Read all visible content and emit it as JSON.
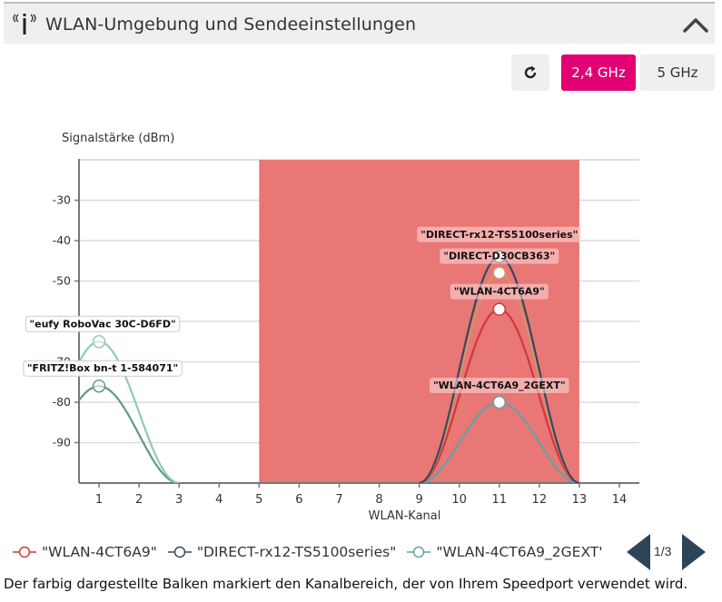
{
  "header": {
    "title": "WLAN-Umgebung und Sendeeinstellungen",
    "icon": "wifi-antenna-icon",
    "collapse_icon": "chevron-up-icon"
  },
  "toolbar": {
    "refresh_icon": "refresh-icon",
    "band_24_label": "2,4 GHz",
    "band_5_label": "5 GHz",
    "active_band": "2,4 GHz",
    "active_color": "#e20074"
  },
  "chart_data": {
    "type": "line",
    "title": "",
    "xlabel": "WLAN-Kanal",
    "ylabel": "Signalstärke (dBm)",
    "xlim": [
      0.5,
      14.5
    ],
    "ylim": [
      -100,
      -20
    ],
    "x_ticks": [
      1,
      2,
      3,
      4,
      5,
      6,
      7,
      8,
      9,
      10,
      11,
      12,
      13,
      14
    ],
    "y_ticks": [
      -30,
      -40,
      -50,
      -60,
      -70,
      -80,
      -90
    ],
    "y_tick_labels": [
      "-30",
      "-40",
      "-50",
      "-60",
      "-70",
      "-80",
      "-90"
    ],
    "grid": "horizontal",
    "highlight_band": {
      "from_channel": 5,
      "to_channel": 13,
      "color": "#e87775",
      "meaning": "channel range used by Speedport"
    },
    "series": [
      {
        "name": "\"WLAN-4CT6A9\"",
        "channel": 11,
        "signal_dbm": -57,
        "color": "#cf3a3a",
        "in_legend": true
      },
      {
        "name": "\"DIRECT-rx12-TS5100series\"",
        "channel": 11,
        "signal_dbm": -44,
        "color": "#34495e",
        "in_legend": true
      },
      {
        "name": "\"WLAN-4CT6A9_2GEXT\"",
        "channel": 11,
        "signal_dbm": -80,
        "color": "#5fa3a8",
        "in_legend": true
      },
      {
        "name": "\"DIRECT-D30CB363\"",
        "channel": 11,
        "signal_dbm": -48,
        "color": "#d9906a",
        "in_legend": false
      },
      {
        "name": "\"eufy RoboVac 30C-D6FD\"",
        "channel": 1,
        "signal_dbm": -65,
        "color": "#8fcbb2",
        "in_legend": false
      },
      {
        "name": "\"FRITZ!Box bn-t 1-584071\"",
        "channel": 1,
        "signal_dbm": -76,
        "color": "#5f9a80",
        "in_legend": false
      }
    ]
  },
  "legend": {
    "items": [
      {
        "label": "\"WLAN-4CT6A9\"",
        "color": "#cf3a3a"
      },
      {
        "label": "\"DIRECT-rx12-TS5100series\"",
        "color": "#34495e"
      },
      {
        "label": "\"WLAN-4CT6A9_2GEXT'",
        "color": "#5fa3a8"
      }
    ],
    "page": "1/3",
    "prev_icon": "triangle-left-icon",
    "next_icon": "triangle-right-icon"
  },
  "footnote": "Der farbig dargestellte Balken markiert den Kanalbereich, der von Ihrem Speedport verwendet wird."
}
